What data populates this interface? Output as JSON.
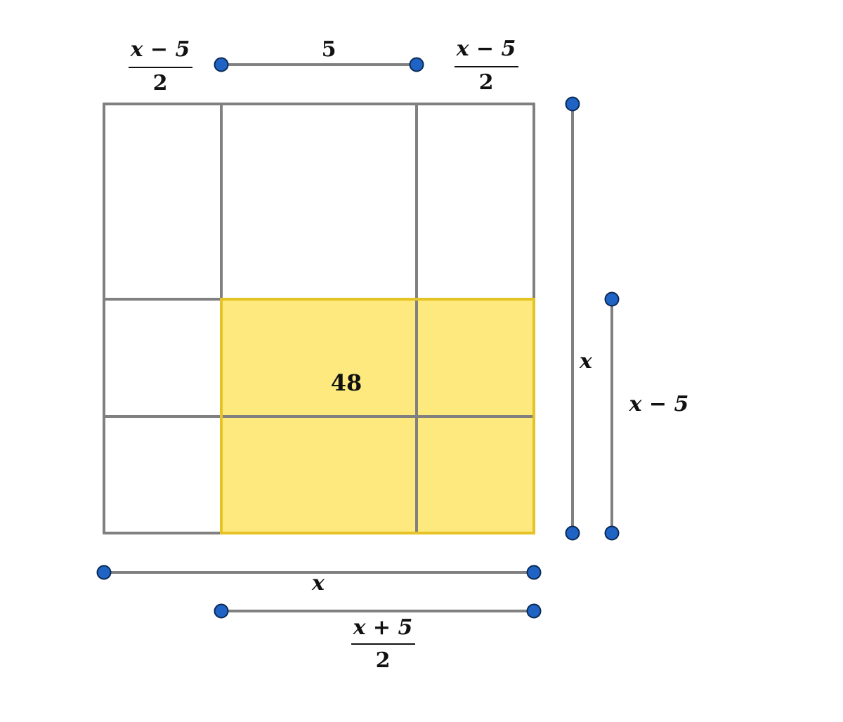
{
  "colors": {
    "grid": "#808080",
    "highlight_fill": "#fde97e",
    "highlight_stroke": "#e6c325",
    "point": "#1f63c4",
    "text": "#111111"
  },
  "labels": {
    "top_left": {
      "numerator": "x − 5",
      "denominator": "2"
    },
    "top_middle": "5",
    "top_right": {
      "numerator": "x − 5",
      "denominator": "2"
    },
    "area": "48",
    "right_long": "x",
    "right_short": "x − 5",
    "bottom_long": "x",
    "bottom_short": {
      "numerator": "x + 5",
      "denominator": "2"
    }
  }
}
